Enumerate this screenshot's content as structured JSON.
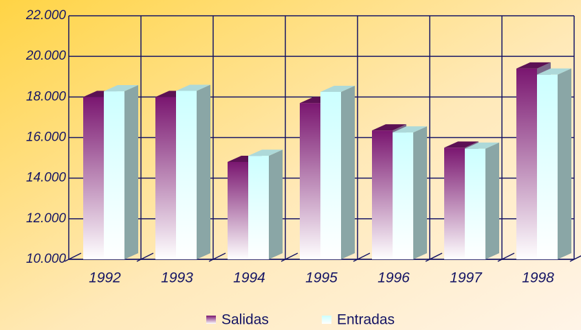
{
  "chart_data": {
    "type": "bar",
    "categories": [
      "1992",
      "1993",
      "1994",
      "1995",
      "1996",
      "1997",
      "1998"
    ],
    "series": [
      {
        "name": "Salidas",
        "color": "#7a1670",
        "values": [
          18000,
          18000,
          14800,
          17700,
          16350,
          15500,
          19400
        ]
      },
      {
        "name": "Entradas",
        "color": "#ccffff",
        "values": [
          18280,
          18300,
          15100,
          18250,
          16250,
          15450,
          19100
        ]
      }
    ],
    "ylim": [
      10000,
      22000
    ],
    "yticks": [
      {
        "value": 10000,
        "label": "10.000"
      },
      {
        "value": 12000,
        "label": "12.000"
      },
      {
        "value": 14000,
        "label": "14.000"
      },
      {
        "value": 16000,
        "label": "16.000"
      },
      {
        "value": 18000,
        "label": "18.000"
      },
      {
        "value": 20000,
        "label": "20.000"
      },
      {
        "value": 22000,
        "label": "22.000"
      }
    ],
    "grid": true
  }
}
